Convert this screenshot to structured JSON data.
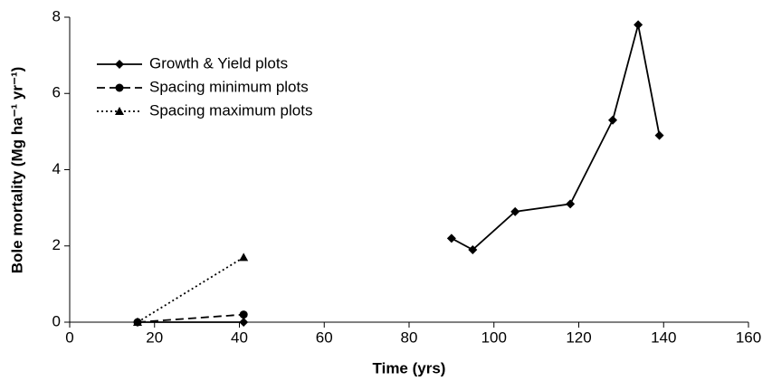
{
  "chart_data": {
    "type": "line",
    "x_label": "Time (yrs)",
    "y_label": "Bole mortality (Mg ha⁻¹ yr⁻¹)",
    "xlim": [
      0,
      160
    ],
    "xticks": [
      0,
      20,
      40,
      60,
      80,
      100,
      120,
      140,
      160
    ],
    "ylim": [
      0,
      8
    ],
    "yticks": [
      0,
      2,
      4,
      6,
      8
    ],
    "grid": false,
    "legend": "upper left",
    "series": [
      {
        "name": "Growth & Yield plots",
        "color": "#000000",
        "dash": "solid",
        "marker": "diamond",
        "x": [
          16,
          41,
          null,
          90,
          95,
          105,
          118,
          128,
          134,
          139
        ],
        "values": [
          0,
          0,
          null,
          2.2,
          1.9,
          2.9,
          3.1,
          5.3,
          7.8,
          4.9
        ]
      },
      {
        "name": "Spacing minimum plots",
        "color": "#000000",
        "dash": "dashed",
        "marker": "circle",
        "x": [
          16,
          41
        ],
        "values": [
          0,
          0.2
        ]
      },
      {
        "name": "Spacing maximum plots",
        "color": "#000000",
        "dash": "dotted",
        "marker": "triangle",
        "x": [
          16,
          41
        ],
        "values": [
          0,
          1.7
        ]
      }
    ]
  }
}
